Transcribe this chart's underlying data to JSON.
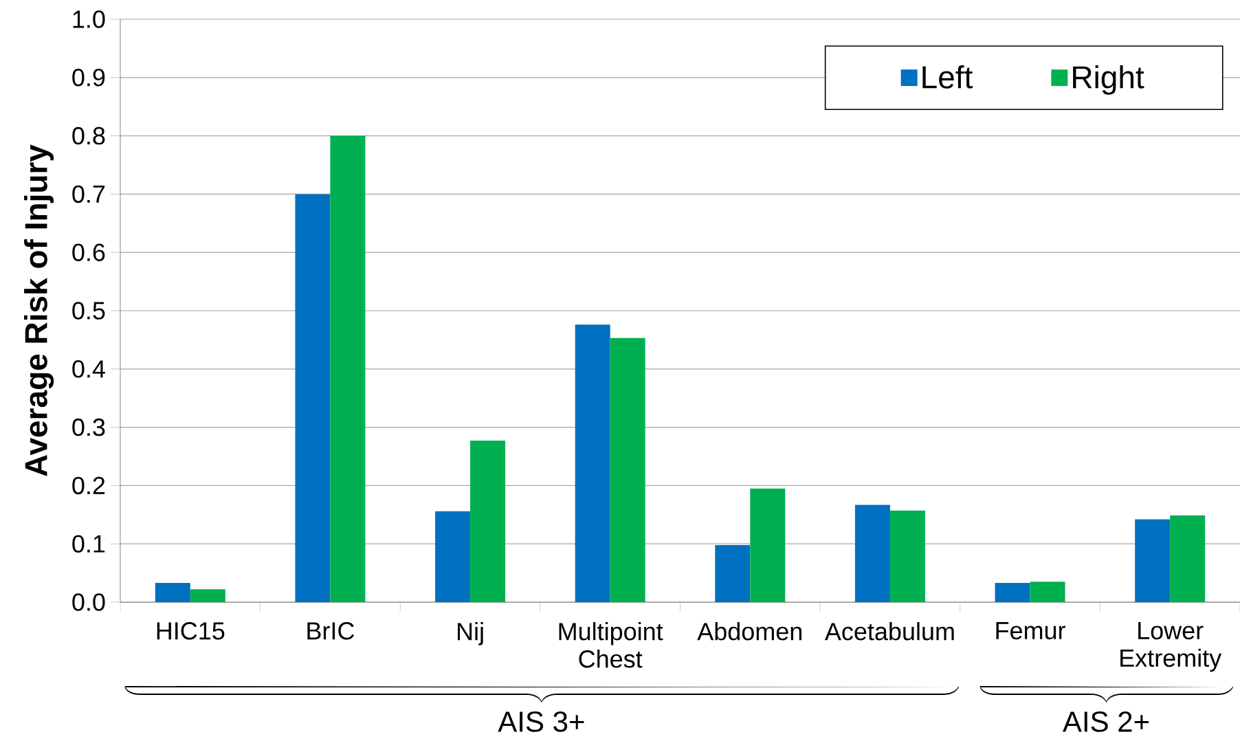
{
  "chart_data": {
    "type": "bar",
    "ylabel": "Average Risk of Injury",
    "categories": [
      "HIC15",
      "BrIC",
      "Nij",
      "Multipoint Chest",
      "Abdomen",
      "Acetabulum",
      "Femur",
      "Lower Extremity"
    ],
    "series": [
      {
        "name": "Left",
        "color": "#0070c0",
        "values": [
          0.033,
          0.7,
          0.156,
          0.476,
          0.098,
          0.167,
          0.033,
          0.142
        ]
      },
      {
        "name": "Right",
        "color": "#00b050",
        "values": [
          0.022,
          0.8,
          0.277,
          0.453,
          0.195,
          0.157,
          0.035,
          0.149
        ]
      }
    ],
    "ylim": [
      0,
      1
    ],
    "yticks": [
      {
        "value": 0,
        "label": "0.0"
      },
      0.1,
      0.2,
      0.3,
      0.4,
      0.5,
      0.6,
      0.7,
      0.8,
      0.9,
      {
        "value": 1,
        "label": "1.0"
      }
    ],
    "grid": "y",
    "legend": "top right",
    "annotations": [
      "AIS 3+",
      "AIS 2+"
    ]
  }
}
